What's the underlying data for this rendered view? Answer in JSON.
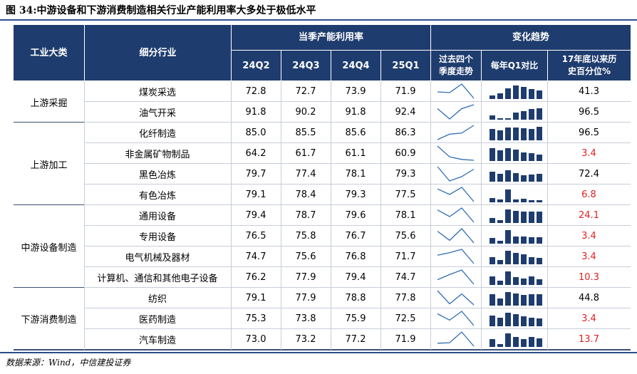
{
  "figure_title": "图 34:中游设备和下游消费制造相关行业产能利用率大多处于极低水平",
  "headers": {
    "category": "工业大类",
    "sub_industry": "细分行业",
    "capacity_group": "当季产能利用率",
    "trend_group": "变化趋势",
    "quarters": [
      "24Q2",
      "24Q3",
      "24Q4",
      "25Q1"
    ],
    "trend_line": "过去四个季度走势",
    "q1_compare": "每年Q1对比",
    "percentile": "17年底以来历史百分位%"
  },
  "groups": [
    {
      "name": "上游采掘",
      "rows": 2
    },
    {
      "name": "上游加工",
      "rows": 4
    },
    {
      "name": "中游设备制造",
      "rows": 4
    },
    {
      "name": "下游消费制造",
      "rows": 3
    }
  ],
  "rows": [
    {
      "industry": "煤炭采选",
      "values": [
        "72.8",
        "72.7",
        "73.9",
        "71.9"
      ],
      "percentile": "41.3",
      "low": false,
      "q1": [
        0.25,
        0.4,
        0.75,
        0.95,
        0.85,
        0.7,
        0.6
      ]
    },
    {
      "industry": "油气开采",
      "values": [
        "91.8",
        "90.2",
        "91.8",
        "92.4"
      ],
      "percentile": "96.5",
      "low": false,
      "q1": [
        0.3,
        0.1,
        0.1,
        0.5,
        0.6,
        0.75,
        0.8
      ]
    },
    {
      "industry": "化纤制造",
      "values": [
        "85.0",
        "85.5",
        "85.6",
        "86.3"
      ],
      "percentile": "96.5",
      "low": false,
      "q1": [
        0.8,
        0.7,
        0.9,
        0.9,
        0.85,
        0.8,
        0.95
      ]
    },
    {
      "industry": "非金属矿物制品",
      "values": [
        "64.2",
        "61.7",
        "61.1",
        "60.9"
      ],
      "percentile": "3.4",
      "low": true,
      "q1": [
        0.9,
        0.75,
        0.9,
        0.8,
        0.6,
        0.55,
        0.45
      ]
    },
    {
      "industry": "黑色冶炼",
      "values": [
        "79.7",
        "77.4",
        "78.1",
        "79.3"
      ],
      "percentile": "72.4",
      "low": false,
      "q1": [
        0.7,
        0.55,
        0.8,
        0.6,
        0.45,
        0.5,
        0.55
      ]
    },
    {
      "industry": "有色冶炼",
      "values": [
        "79.1",
        "78.4",
        "79.3",
        "77.5"
      ],
      "percentile": "6.8",
      "low": true,
      "q1": [
        0.3,
        0.2,
        0.9,
        0.2,
        0.25,
        0.15,
        0.15
      ]
    },
    {
      "industry": "通用设备",
      "values": [
        "79.4",
        "78.7",
        "79.6",
        "78.1"
      ],
      "percentile": "24.1",
      "low": true,
      "q1": [
        0.35,
        0.2,
        0.95,
        0.85,
        0.8,
        0.8,
        0.8
      ]
    },
    {
      "industry": "专用设备",
      "values": [
        "76.5",
        "75.8",
        "76.7",
        "75.6"
      ],
      "percentile": "3.4",
      "low": true,
      "q1": [
        0.4,
        0.2,
        0.95,
        0.5,
        0.5,
        0.45,
        0.45
      ]
    },
    {
      "industry": "电气机械及器材",
      "values": [
        "74.7",
        "75.6",
        "76.8",
        "71.7"
      ],
      "percentile": "3.4",
      "low": true,
      "q1": [
        0.5,
        0.3,
        0.95,
        0.8,
        0.7,
        0.5,
        0.45
      ]
    },
    {
      "industry": "计算机、通信和其他电子设备",
      "values": [
        "76.2",
        "77.9",
        "79.4",
        "74.7"
      ],
      "percentile": "10.3",
      "low": true,
      "q1": [
        0.6,
        0.3,
        0.95,
        0.55,
        0.45,
        0.6,
        0.4
      ]
    },
    {
      "industry": "纺织",
      "values": [
        "79.1",
        "77.9",
        "78.8",
        "77.8"
      ],
      "percentile": "44.8",
      "low": false,
      "q1": [
        0.8,
        0.5,
        0.95,
        0.85,
        0.75,
        0.8,
        0.8
      ]
    },
    {
      "industry": "医药制造",
      "values": [
        "75.3",
        "73.8",
        "75.9",
        "72.5"
      ],
      "percentile": "3.4",
      "low": true,
      "q1": [
        0.75,
        0.6,
        0.95,
        0.85,
        0.7,
        0.6,
        0.55
      ]
    },
    {
      "industry": "汽车制造",
      "values": [
        "73.0",
        "73.2",
        "77.2",
        "71.9"
      ],
      "percentile": "13.7",
      "low": true,
      "q1": [
        0.55,
        0.2,
        0.95,
        0.7,
        0.55,
        0.7,
        0.6
      ]
    }
  ],
  "colors": {
    "header": "#1f3c6e",
    "bar": "#1f3c6e",
    "line": "#2f6db5",
    "low": "#e02020"
  },
  "source": "数据来源：Wind，中信建投证券"
}
